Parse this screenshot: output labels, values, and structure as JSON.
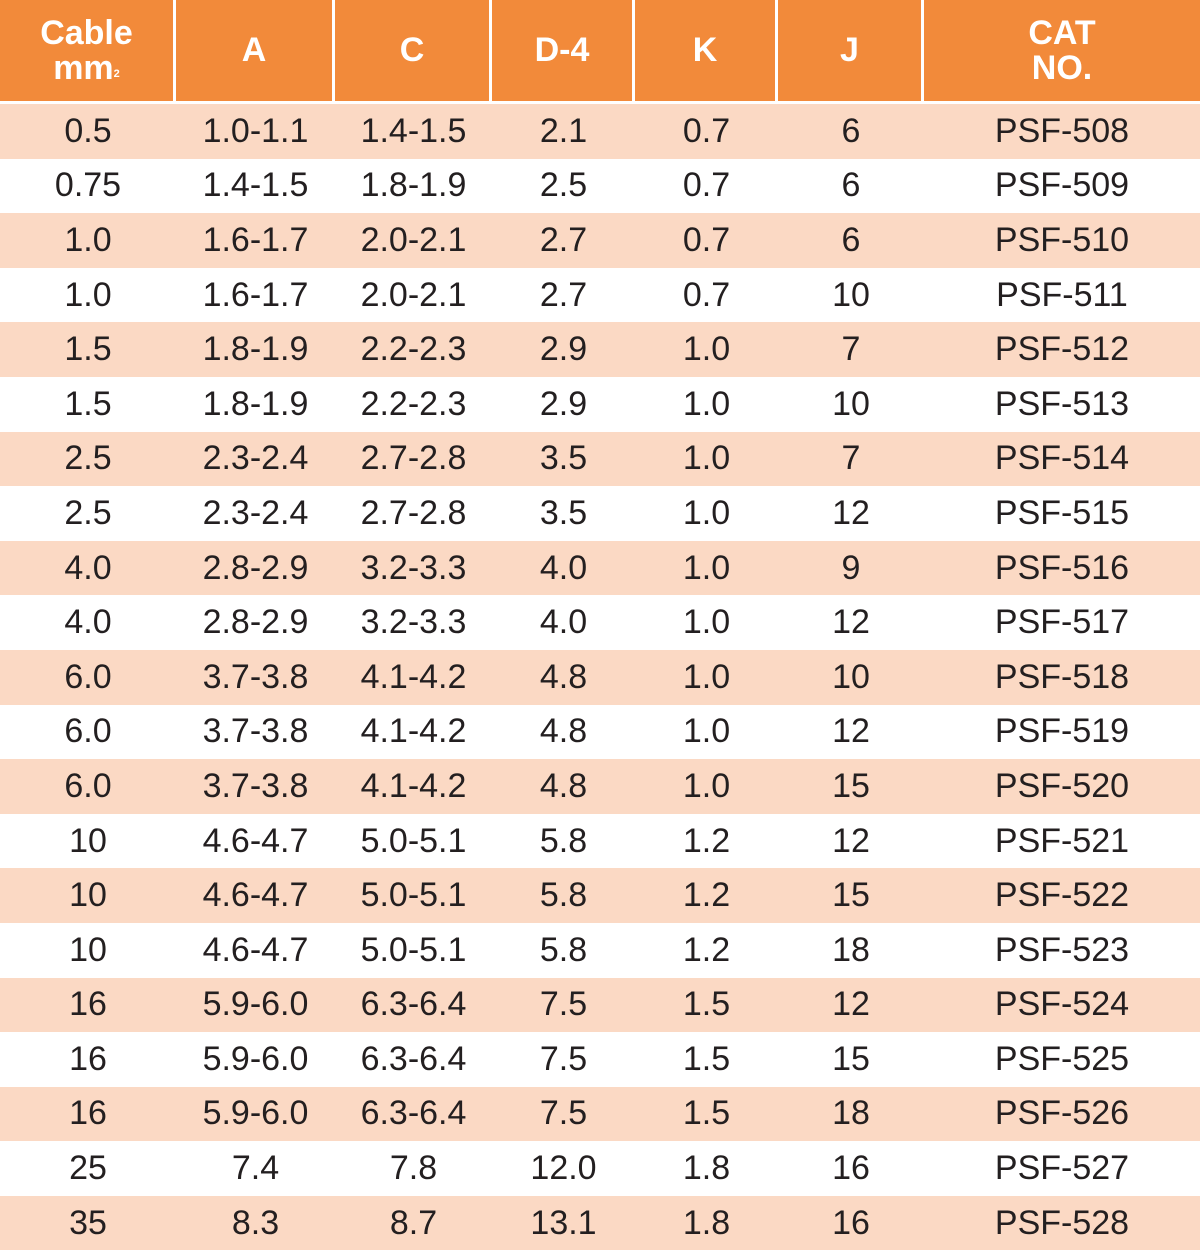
{
  "table": {
    "headers": [
      {
        "line1": "Cable",
        "line2": "mm",
        "sup": "2"
      },
      {
        "line1": "A"
      },
      {
        "line1": "C"
      },
      {
        "line1": "D-4"
      },
      {
        "line1": "K"
      },
      {
        "line1": "J"
      },
      {
        "line1": "CAT",
        "line2": "NO."
      }
    ],
    "rows": [
      [
        "0.5",
        "1.0-1.1",
        "1.4-1.5",
        "2.1",
        "0.7",
        "6",
        "PSF-508"
      ],
      [
        "0.75",
        "1.4-1.5",
        "1.8-1.9",
        "2.5",
        "0.7",
        "6",
        "PSF-509"
      ],
      [
        "1.0",
        "1.6-1.7",
        "2.0-2.1",
        "2.7",
        "0.7",
        "6",
        "PSF-510"
      ],
      [
        "1.0",
        "1.6-1.7",
        "2.0-2.1",
        "2.7",
        "0.7",
        "10",
        "PSF-511"
      ],
      [
        "1.5",
        "1.8-1.9",
        "2.2-2.3",
        "2.9",
        "1.0",
        "7",
        "PSF-512"
      ],
      [
        "1.5",
        "1.8-1.9",
        "2.2-2.3",
        "2.9",
        "1.0",
        "10",
        "PSF-513"
      ],
      [
        "2.5",
        "2.3-2.4",
        "2.7-2.8",
        "3.5",
        "1.0",
        "7",
        "PSF-514"
      ],
      [
        "2.5",
        "2.3-2.4",
        "2.7-2.8",
        "3.5",
        "1.0",
        "12",
        "PSF-515"
      ],
      [
        "4.0",
        "2.8-2.9",
        "3.2-3.3",
        "4.0",
        "1.0",
        "9",
        "PSF-516"
      ],
      [
        "4.0",
        "2.8-2.9",
        "3.2-3.3",
        "4.0",
        "1.0",
        "12",
        "PSF-517"
      ],
      [
        "6.0",
        "3.7-3.8",
        "4.1-4.2",
        "4.8",
        "1.0",
        "10",
        "PSF-518"
      ],
      [
        "6.0",
        "3.7-3.8",
        "4.1-4.2",
        "4.8",
        "1.0",
        "12",
        "PSF-519"
      ],
      [
        "6.0",
        "3.7-3.8",
        "4.1-4.2",
        "4.8",
        "1.0",
        "15",
        "PSF-520"
      ],
      [
        "10",
        "4.6-4.7",
        "5.0-5.1",
        "5.8",
        "1.2",
        "12",
        "PSF-521"
      ],
      [
        "10",
        "4.6-4.7",
        "5.0-5.1",
        "5.8",
        "1.2",
        "15",
        "PSF-522"
      ],
      [
        "10",
        "4.6-4.7",
        "5.0-5.1",
        "5.8",
        "1.2",
        "18",
        "PSF-523"
      ],
      [
        "16",
        "5.9-6.0",
        "6.3-6.4",
        "7.5",
        "1.5",
        "12",
        "PSF-524"
      ],
      [
        "16",
        "5.9-6.0",
        "6.3-6.4",
        "7.5",
        "1.5",
        "15",
        "PSF-525"
      ],
      [
        "16",
        "5.9-6.0",
        "6.3-6.4",
        "7.5",
        "1.5",
        "18",
        "PSF-526"
      ],
      [
        "25",
        "7.4",
        "7.8",
        "12.0",
        "1.8",
        "16",
        "PSF-527"
      ],
      [
        "35",
        "8.3",
        "8.7",
        "13.1",
        "1.8",
        "16",
        "PSF-528"
      ]
    ]
  },
  "colors": {
    "header_bg": "#f28a3a",
    "header_text": "#ffffff",
    "stripe_bg": "#fbd9c4",
    "body_text": "#231f20"
  }
}
